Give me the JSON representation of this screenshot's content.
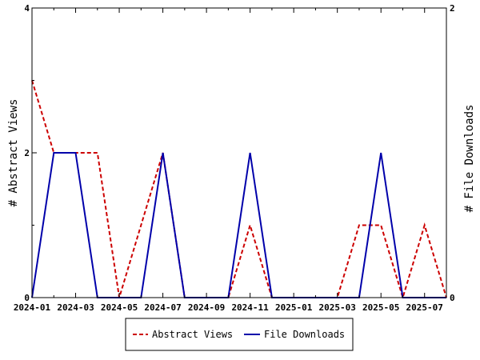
{
  "chart_data": {
    "type": "line",
    "categories": [
      "2024-01",
      "2024-02",
      "2024-03",
      "2024-04",
      "2024-05",
      "2024-06",
      "2024-07",
      "2024-08",
      "2024-09",
      "2024-10",
      "2024-11",
      "2024-12",
      "2025-01",
      "2025-02",
      "2025-03",
      "2025-04",
      "2025-05",
      "2025-06",
      "2025-07",
      "2025-08"
    ],
    "x_tick_labels": [
      "2024-01",
      "2024-03",
      "2024-05",
      "2024-07",
      "2024-09",
      "2024-11",
      "2025-01",
      "2025-03",
      "2025-05",
      "2025-07"
    ],
    "series": [
      {
        "name": "Abstract Views",
        "axis": "left",
        "color": "#cc0000",
        "style": "dashed",
        "values": [
          3,
          2,
          2,
          2,
          0,
          1,
          2,
          0,
          0,
          0,
          1,
          0,
          0,
          0,
          0,
          1,
          1,
          0,
          1,
          0
        ]
      },
      {
        "name": "File Downloads",
        "axis": "right",
        "color": "#0000aa",
        "style": "solid",
        "values": [
          0,
          1,
          1,
          0,
          0,
          0,
          1,
          0,
          0,
          0,
          1,
          0,
          0,
          0,
          0,
          0,
          1,
          0,
          0,
          0
        ]
      }
    ],
    "ylabel": "# Abstract Views",
    "y2label": "# File Downloads",
    "ylim": [
      0,
      4
    ],
    "y2lim": [
      0,
      2
    ],
    "yticks": [
      0,
      2,
      4
    ],
    "y2ticks": [
      0,
      2
    ],
    "grid": false,
    "legend": "bottom"
  }
}
